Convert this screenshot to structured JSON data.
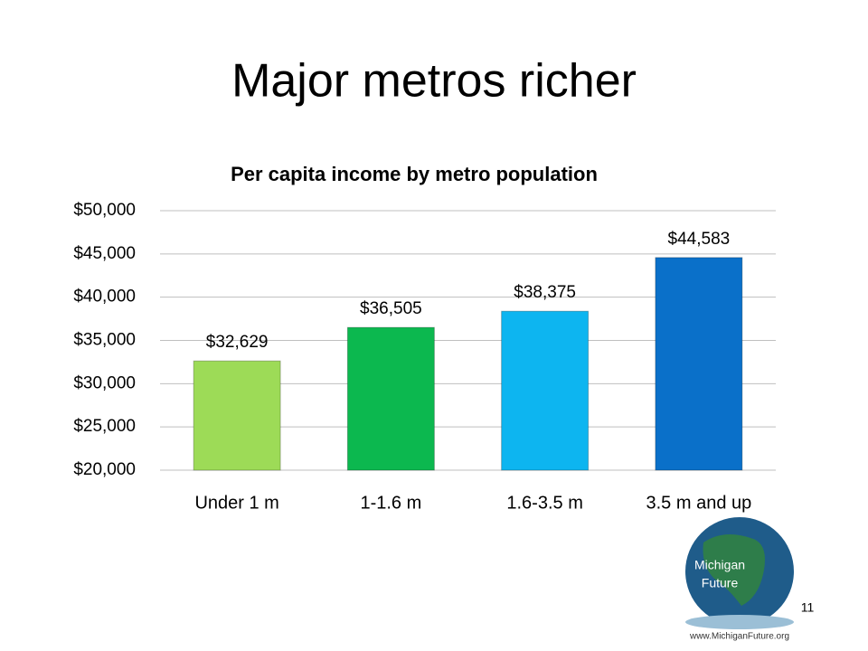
{
  "slide": {
    "title": "Major metros richer",
    "page_number": "11"
  },
  "logo": {
    "line1": "Michigan",
    "line2": "Future",
    "url": "www.MichiganFuture.org"
  },
  "chart_data": {
    "type": "bar",
    "title": "Per capita income by metro population",
    "categories": [
      "Under 1 m",
      "1-1.6 m",
      "1.6-3.5 m",
      "3.5 m and up"
    ],
    "values": [
      32629,
      36505,
      38375,
      44583
    ],
    "value_labels": [
      "$32,629",
      "$36,505",
      "$38,375",
      "$44,583"
    ],
    "colors": [
      "#9ddb57",
      "#0cb84f",
      "#0db5f0",
      "#0a70c9"
    ],
    "ylim": [
      20000,
      50000
    ],
    "yticks": [
      {
        "value": 20000,
        "label": "$20,000"
      },
      {
        "value": 25000,
        "label": "$25,000"
      },
      {
        "value": 30000,
        "label": "$30,000"
      },
      {
        "value": 35000,
        "label": "$35,000"
      },
      {
        "value": 40000,
        "label": "$40,000"
      },
      {
        "value": 45000,
        "label": "$45,000"
      },
      {
        "value": 50000,
        "label": "$50,000"
      }
    ],
    "grid": true
  }
}
